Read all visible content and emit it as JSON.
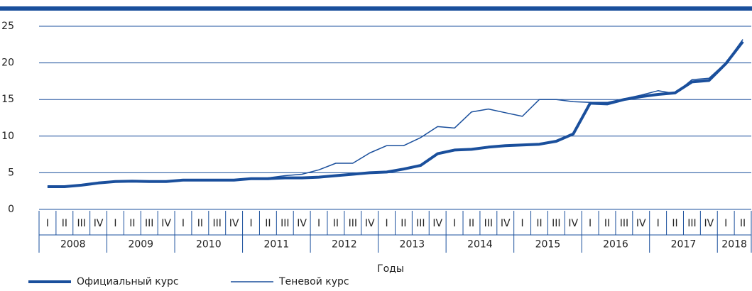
{
  "chart_data": {
    "type": "line",
    "x_label": "Годы",
    "categories": [
      "I",
      "II",
      "III",
      "IV",
      "I",
      "II",
      "III",
      "IV",
      "I",
      "II",
      "III",
      "IV",
      "I",
      "II",
      "III",
      "IV",
      "I",
      "II",
      "III",
      "IV",
      "I",
      "II",
      "III",
      "IV",
      "I",
      "II",
      "III",
      "IV",
      "I",
      "II",
      "III",
      "IV",
      "I",
      "II",
      "III",
      "IV",
      "I",
      "II",
      "III",
      "IV",
      "I",
      "II"
    ],
    "years": [
      "2008",
      "2009",
      "2010",
      "2011",
      "2012",
      "2013",
      "2014",
      "2015",
      "2016",
      "2017",
      "2018"
    ],
    "series": [
      {
        "name": "Официальный курс",
        "color": "#1a4f9c",
        "width": 4,
        "values": [
          3.1,
          3.1,
          3.3,
          3.6,
          3.8,
          3.85,
          3.8,
          3.8,
          4.0,
          4.0,
          4.0,
          4.0,
          4.2,
          4.2,
          4.3,
          4.3,
          4.4,
          4.6,
          4.8,
          5.0,
          5.1,
          5.5,
          6.0,
          7.6,
          8.1,
          8.2,
          8.5,
          8.7,
          8.8,
          8.9,
          9.3,
          10.3,
          14.5,
          14.4,
          15.0,
          15.4,
          15.7,
          15.9,
          17.4,
          17.6,
          19.9,
          22.9
        ]
      },
      {
        "name": "Теневой курс",
        "color": "#1a4f9c",
        "width": 1.5,
        "values": [
          3.1,
          3.1,
          3.3,
          3.6,
          3.8,
          3.9,
          3.8,
          3.9,
          4.0,
          4.0,
          4.1,
          4.1,
          4.2,
          4.3,
          4.6,
          4.8,
          5.4,
          6.3,
          6.3,
          7.7,
          8.7,
          8.7,
          9.8,
          11.3,
          11.1,
          13.3,
          13.7,
          13.2,
          12.7,
          15.0,
          15.0,
          14.7,
          14.6,
          14.6,
          15.1,
          15.6,
          16.2,
          15.8,
          17.7,
          17.9,
          20.0,
          23.2
        ]
      }
    ],
    "ylim": [
      0,
      25
    ],
    "yticks": [
      0,
      5,
      10,
      15,
      20,
      25
    ],
    "grid": true,
    "legend": "bottom-left"
  }
}
